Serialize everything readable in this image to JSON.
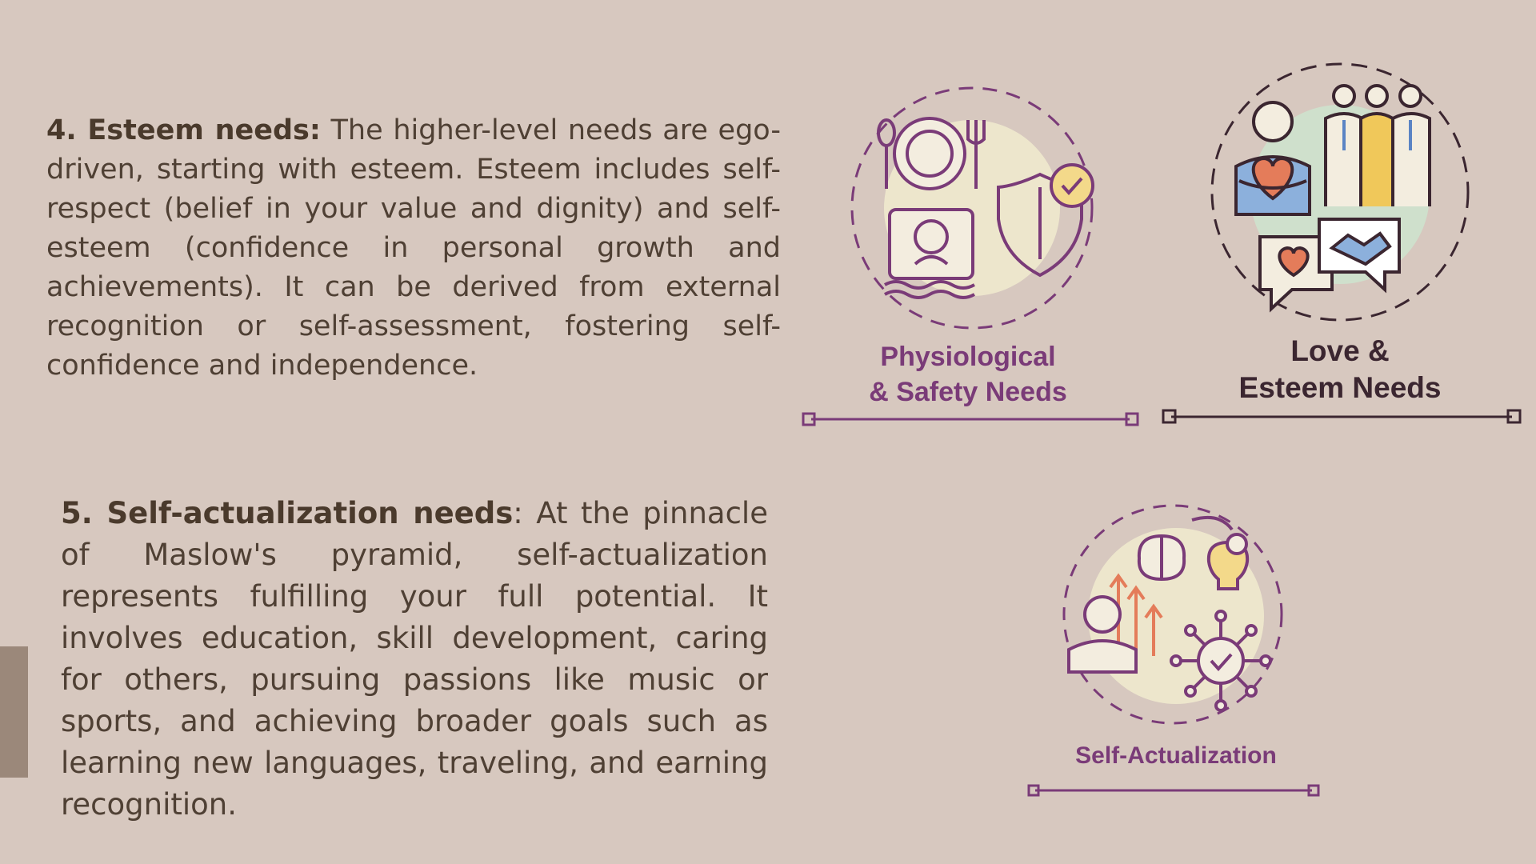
{
  "sections": {
    "esteem": {
      "heading": "4. Esteem needs:",
      "body": " The higher-level needs are ego-driven, starting with esteem. Esteem includes self-respect (belief in your value and dignity) and self-esteem (confidence in personal growth and achievements). It can be derived from external recognition or self-assessment, fostering self-confidence and independence."
    },
    "self_actualization": {
      "heading": "5. Self-actualization needs",
      "body": ": At the pinnacle of Maslow's pyramid, self-actualization represents fulfilling your full potential. It involves education, skill development, caring for others, pursuing passions like music or sports, and achieving broader goals such as learning new languages, traveling, and earning recognition."
    }
  },
  "illustrations": {
    "physiological": {
      "caption_line1": "Physiological",
      "caption_line2": "& Safety Needs",
      "icons": [
        "plate-cutlery-icon",
        "sleeping-person-icon",
        "shield-check-icon"
      ],
      "accent_color": "#7a3b78"
    },
    "love_esteem": {
      "caption_line1": "Love &",
      "caption_line2": "Esteem Needs",
      "icons": [
        "person-heart-icon",
        "group-people-icon",
        "chat-heart-handshake-icon"
      ],
      "accent_color": "#3b2630"
    },
    "self_actualization": {
      "caption": "Self-Actualization",
      "icons": [
        "brain-icon",
        "lightbulb-gear-icon",
        "growth-arrows-icon",
        "network-check-icon"
      ],
      "accent_color": "#7a3b78"
    }
  },
  "colors": {
    "background": "#d7c8bf",
    "text": "#4f4034",
    "purple": "#7a3b78",
    "dark": "#3b2630",
    "cream_circle": "#ede6cc",
    "mint_circle": "#cfe0cc",
    "side_accent": "#9b887a"
  }
}
